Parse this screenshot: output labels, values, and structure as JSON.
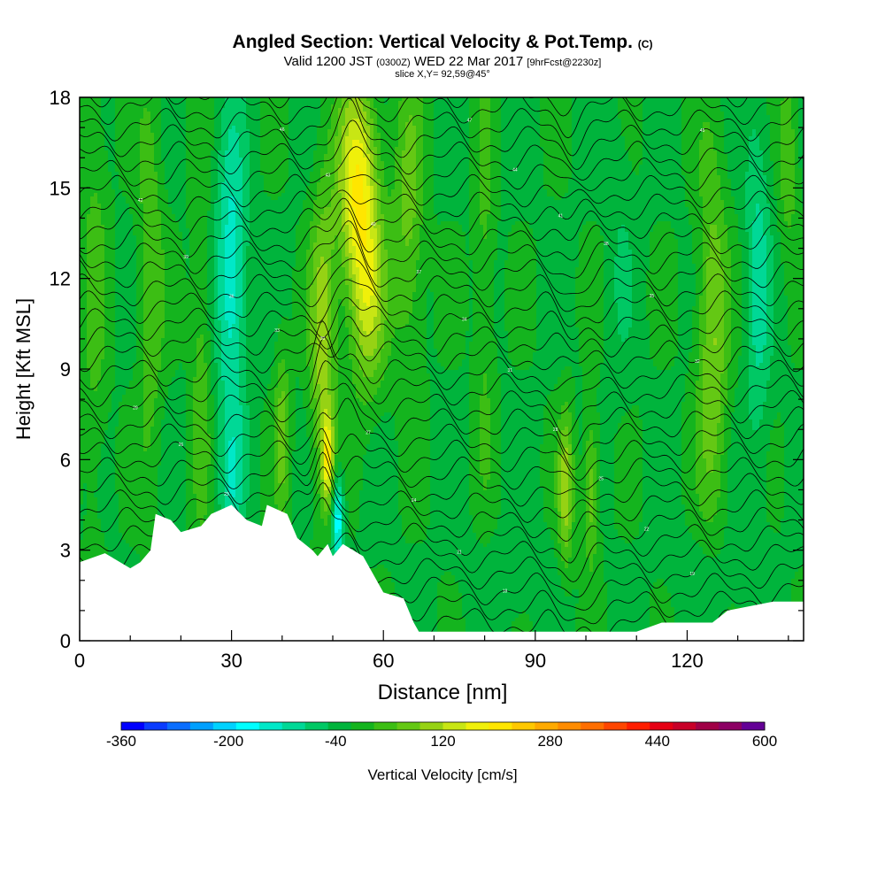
{
  "header": {
    "title_main": "Angled Section: Vertical Velocity & Pot.Temp.",
    "title_units": "(C)",
    "valid_prefix": "Valid 1200 JST",
    "valid_utc": "(0300Z)",
    "valid_date": "WED 22 Mar 2017",
    "forecast": "[9hrFcst@2230z]",
    "slice": "slice X,Y= 92,59@45°"
  },
  "chart_data": {
    "type": "heatmap",
    "xlabel": "Distance [nm]",
    "ylabel": "Height [Kft MSL]",
    "xlim": [
      0,
      143
    ],
    "ylim": [
      0,
      18
    ],
    "x_ticks": [
      0,
      30,
      60,
      90,
      120
    ],
    "y_ticks": [
      0,
      3,
      6,
      9,
      12,
      15,
      18
    ],
    "colorbar": {
      "label": "Vertical Velocity [cm/s]",
      "min": -360,
      "max": 600,
      "step": 40,
      "tick_labels": [
        "-360",
        "-200",
        "-40",
        "120",
        "280",
        "440",
        "600"
      ],
      "colors": [
        "#0000ff",
        "#0a3cff",
        "#0a6eff",
        "#00a0ff",
        "#00d2ff",
        "#00ffff",
        "#00e8c8",
        "#00d896",
        "#00c864",
        "#00b43c",
        "#14b41e",
        "#3cbe14",
        "#64c814",
        "#96d214",
        "#c8e614",
        "#f0f00a",
        "#ffe600",
        "#ffc800",
        "#ffaa00",
        "#ff8c00",
        "#ff6e00",
        "#ff4600",
        "#ff1e00",
        "#e60014",
        "#c80028",
        "#a00046",
        "#8c0064",
        "#640096"
      ]
    },
    "terrain_profile_kft": [
      [
        0,
        2.6
      ],
      [
        5,
        2.9
      ],
      [
        10,
        2.4
      ],
      [
        12,
        2.6
      ],
      [
        14,
        3.0
      ],
      [
        15,
        4.2
      ],
      [
        18,
        4.0
      ],
      [
        20,
        3.6
      ],
      [
        24,
        3.8
      ],
      [
        26,
        4.2
      ],
      [
        30,
        4.5
      ],
      [
        33,
        4.0
      ],
      [
        36,
        3.8
      ],
      [
        37,
        4.5
      ],
      [
        41,
        4.2
      ],
      [
        43,
        3.4
      ],
      [
        46,
        3.0
      ],
      [
        47,
        2.8
      ],
      [
        49,
        3.2
      ],
      [
        50,
        2.8
      ],
      [
        52,
        3.2
      ],
      [
        56,
        2.8
      ],
      [
        58,
        2.2
      ],
      [
        60,
        1.6
      ],
      [
        64,
        1.4
      ],
      [
        66,
        0.6
      ],
      [
        67,
        0.3
      ],
      [
        110,
        0.3
      ],
      [
        115,
        0.6
      ],
      [
        125,
        0.6
      ],
      [
        128,
        1.0
      ],
      [
        137,
        1.3
      ],
      [
        143,
        1.3
      ]
    ],
    "contour_labels": [
      "16",
      "17",
      "18",
      "19",
      "20",
      "21",
      "22",
      "23",
      "24",
      "25",
      "26",
      "27",
      "28",
      "29",
      "30",
      "31",
      "32",
      "33",
      "34",
      "35",
      "36",
      "37",
      "38",
      "39",
      "40",
      "41",
      "42",
      "43",
      "44",
      "45",
      "46",
      "47",
      "48"
    ]
  }
}
